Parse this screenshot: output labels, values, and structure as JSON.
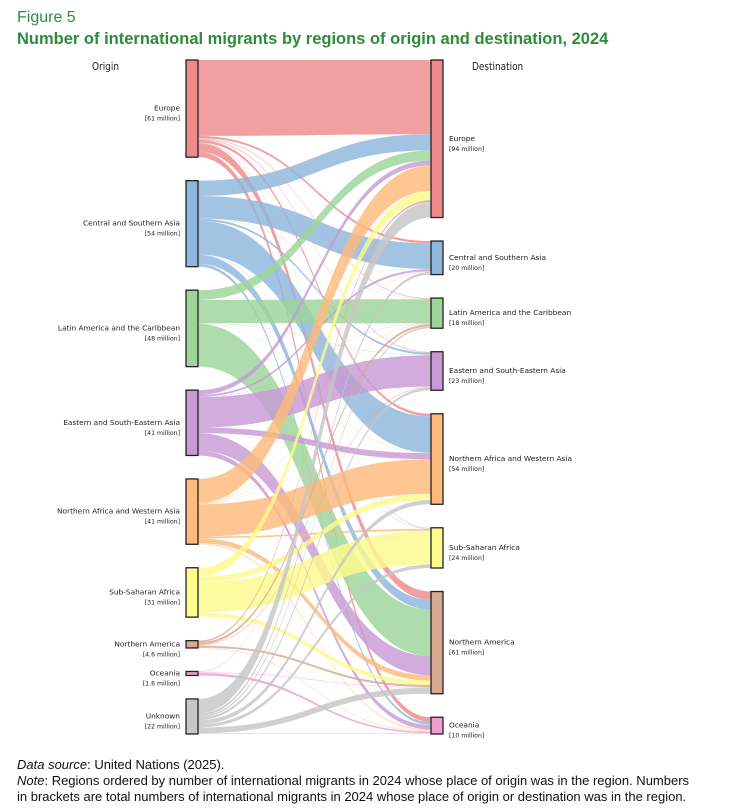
{
  "figure_number": "Figure 5",
  "title": "Number of international migrants by regions of origin and destination, 2024",
  "column_headers": {
    "origin": "Origin",
    "destination": "Destination"
  },
  "footer": {
    "source_label": "Data source",
    "source_text": ": United Nations (2025).",
    "note_label": "Note",
    "note_line1": ": Regions ordered by number of international migrants in 2024 whose place of origin was in the region. Numbers",
    "note_line2": "in brackets are total numbers of international migrants in 2024 whose place of origin or destination was in the region."
  },
  "chart_data": {
    "type": "sankey",
    "title": "Number of international migrants by regions of origin and destination, 2024",
    "units": "million",
    "colors": {
      "Europe": "#ef8a8c",
      "Central and Southern Asia": "#8fb6dc",
      "Latin America and the Caribbean": "#9ed49a",
      "Eastern and South-Eastern Asia": "#c79ad4",
      "Northern Africa and Western Asia": "#fdba7a",
      "Sub-Saharan Africa": "#fdfa8e",
      "Northern America": "#d8a890",
      "Oceania": "#ee9fcd",
      "Unknown": "#c6c6c6"
    },
    "origins": [
      {
        "name": "Europe",
        "total": 61,
        "label": "[61 million]"
      },
      {
        "name": "Central and Southern Asia",
        "total": 54,
        "label": "[54 million]"
      },
      {
        "name": "Latin America and the Caribbean",
        "total": 48,
        "label": "[48 million]"
      },
      {
        "name": "Eastern and South-Eastern Asia",
        "total": 41,
        "label": "[41 million]"
      },
      {
        "name": "Northern Africa and Western Asia",
        "total": 41,
        "label": "[41 million]"
      },
      {
        "name": "Sub-Saharan Africa",
        "total": 31,
        "label": "[31 million]"
      },
      {
        "name": "Northern America",
        "total": 4.6,
        "label": "[4.6 million]"
      },
      {
        "name": "Oceania",
        "total": 1.6,
        "label": "[1.6 million]"
      },
      {
        "name": "Unknown",
        "total": 22,
        "label": "[22 million]"
      }
    ],
    "destinations": [
      {
        "name": "Europe",
        "total": 94,
        "label": "[94 million]"
      },
      {
        "name": "Central and Southern Asia",
        "total": 20,
        "label": "[20 million]"
      },
      {
        "name": "Latin America and the Caribbean",
        "total": 18,
        "label": "[18 million]"
      },
      {
        "name": "Eastern and South-Eastern Asia",
        "total": 23,
        "label": "[23 million]"
      },
      {
        "name": "Northern Africa and Western Asia",
        "total": 54,
        "label": "[54 million]"
      },
      {
        "name": "Sub-Saharan Africa",
        "total": 24,
        "label": "[24 million]"
      },
      {
        "name": "Northern America",
        "total": 61,
        "label": "[61 million]"
      },
      {
        "name": "Oceania",
        "total": 10,
        "label": "[10 million]"
      }
    ],
    "flows": [
      {
        "from": "Europe",
        "to": "Europe",
        "value": 44
      },
      {
        "from": "Europe",
        "to": "Central and Southern Asia",
        "value": 1.2
      },
      {
        "from": "Europe",
        "to": "Latin America and the Caribbean",
        "value": 0.5
      },
      {
        "from": "Europe",
        "to": "Eastern and South-Eastern Asia",
        "value": 0.6
      },
      {
        "from": "Europe",
        "to": "Northern Africa and Western Asia",
        "value": 1.5
      },
      {
        "from": "Europe",
        "to": "Sub-Saharan Africa",
        "value": 0.4
      },
      {
        "from": "Europe",
        "to": "Northern America",
        "value": 4.8
      },
      {
        "from": "Europe",
        "to": "Oceania",
        "value": 3.3
      },
      {
        "from": "Central and Southern Asia",
        "to": "Europe",
        "value": 9.5
      },
      {
        "from": "Central and Southern Asia",
        "to": "Central and Southern Asia",
        "value": 14
      },
      {
        "from": "Central and Southern Asia",
        "to": "Latin America and the Caribbean",
        "value": 0.2
      },
      {
        "from": "Central and Southern Asia",
        "to": "Eastern and South-Eastern Asia",
        "value": 1.2
      },
      {
        "from": "Central and Southern Asia",
        "to": "Northern Africa and Western Asia",
        "value": 21
      },
      {
        "from": "Central and Southern Asia",
        "to": "Sub-Saharan Africa",
        "value": 0.3
      },
      {
        "from": "Central and Southern Asia",
        "to": "Northern America",
        "value": 5.5
      },
      {
        "from": "Central and Southern Asia",
        "to": "Oceania",
        "value": 1.8
      },
      {
        "from": "Latin America and the Caribbean",
        "to": "Europe",
        "value": 6.0
      },
      {
        "from": "Latin America and the Caribbean",
        "to": "Central and Southern Asia",
        "value": 0.1
      },
      {
        "from": "Latin America and the Caribbean",
        "to": "Latin America and the Caribbean",
        "value": 14.5
      },
      {
        "from": "Latin America and the Caribbean",
        "to": "Eastern and South-Eastern Asia",
        "value": 0.3
      },
      {
        "from": "Latin America and the Caribbean",
        "to": "Northern Africa and Western Asia",
        "value": 0.2
      },
      {
        "from": "Latin America and the Caribbean",
        "to": "Northern America",
        "value": 26.5
      },
      {
        "from": "Latin America and the Caribbean",
        "to": "Oceania",
        "value": 0.2
      },
      {
        "from": "Eastern and South-Eastern Asia",
        "to": "Europe",
        "value": 3.0
      },
      {
        "from": "Eastern and South-Eastern Asia",
        "to": "Central and Southern Asia",
        "value": 1.2
      },
      {
        "from": "Eastern and South-Eastern Asia",
        "to": "Latin America and the Caribbean",
        "value": 0.2
      },
      {
        "from": "Eastern and South-Eastern Asia",
        "to": "Eastern and South-Eastern Asia",
        "value": 19
      },
      {
        "from": "Eastern and South-Eastern Asia",
        "to": "Northern Africa and Western Asia",
        "value": 3.5
      },
      {
        "from": "Eastern and South-Eastern Asia",
        "to": "Northern America",
        "value": 11
      },
      {
        "from": "Eastern and South-Eastern Asia",
        "to": "Oceania",
        "value": 3.0
      },
      {
        "from": "Northern Africa and Western Asia",
        "to": "Europe",
        "value": 15
      },
      {
        "from": "Northern Africa and Western Asia",
        "to": "Central and Southern Asia",
        "value": 0.3
      },
      {
        "from": "Northern Africa and Western Asia",
        "to": "Latin America and the Caribbean",
        "value": 0.3
      },
      {
        "from": "Northern Africa and Western Asia",
        "to": "Eastern and South-Eastern Asia",
        "value": 0.2
      },
      {
        "from": "Northern Africa and Western Asia",
        "to": "Northern Africa and Western Asia",
        "value": 20
      },
      {
        "from": "Northern Africa and Western Asia",
        "to": "Sub-Saharan Africa",
        "value": 1.0
      },
      {
        "from": "Northern Africa and Western Asia",
        "to": "Northern America",
        "value": 3.0
      },
      {
        "from": "Northern Africa and Western Asia",
        "to": "Oceania",
        "value": 0.8
      },
      {
        "from": "Sub-Saharan Africa",
        "to": "Europe",
        "value": 5.5
      },
      {
        "from": "Sub-Saharan Africa",
        "to": "Northern Africa and Western Asia",
        "value": 3.5
      },
      {
        "from": "Sub-Saharan Africa",
        "to": "Sub-Saharan Africa",
        "value": 19
      },
      {
        "from": "Sub-Saharan Africa",
        "to": "Northern America",
        "value": 2.5
      },
      {
        "from": "Sub-Saharan Africa",
        "to": "Oceania",
        "value": 0.4
      },
      {
        "from": "Northern America",
        "to": "Europe",
        "value": 1.0
      },
      {
        "from": "Northern America",
        "to": "Latin America and the Caribbean",
        "value": 1.5
      },
      {
        "from": "Northern America",
        "to": "Eastern and South-Eastern Asia",
        "value": 0.6
      },
      {
        "from": "Northern America",
        "to": "Northern America",
        "value": 1.2
      },
      {
        "from": "Northern America",
        "to": "Oceania",
        "value": 0.3
      },
      {
        "from": "Oceania",
        "to": "Europe",
        "value": 0.3
      },
      {
        "from": "Oceania",
        "to": "Northern America",
        "value": 0.3
      },
      {
        "from": "Oceania",
        "to": "Oceania",
        "value": 1.0
      },
      {
        "from": "Unknown",
        "to": "Europe",
        "value": 9.0
      },
      {
        "from": "Unknown",
        "to": "Central and Southern Asia",
        "value": 1.5
      },
      {
        "from": "Unknown",
        "to": "Latin America and the Caribbean",
        "value": 1.0
      },
      {
        "from": "Unknown",
        "to": "Eastern and South-Eastern Asia",
        "value": 1.5
      },
      {
        "from": "Unknown",
        "to": "Northern Africa and Western Asia",
        "value": 2.5
      },
      {
        "from": "Unknown",
        "to": "Sub-Saharan Africa",
        "value": 2.0
      },
      {
        "from": "Unknown",
        "to": "Northern America",
        "value": 3.5
      },
      {
        "from": "Unknown",
        "to": "Oceania",
        "value": 0.5
      }
    ]
  }
}
